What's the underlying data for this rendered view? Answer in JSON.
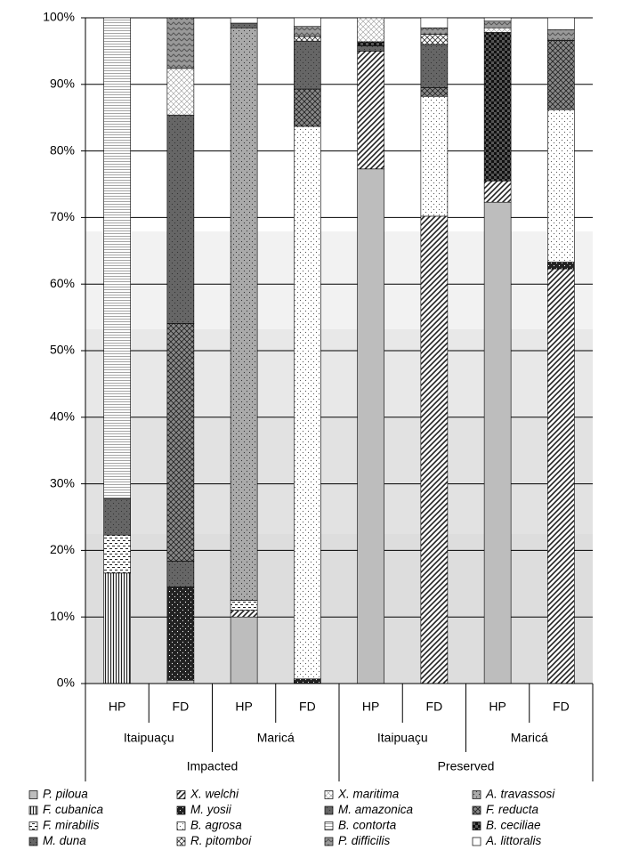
{
  "chart_data": {
    "type": "bar",
    "stacked": true,
    "categories": [
      "HP",
      "FD",
      "HP",
      "FD",
      "HP",
      "FD",
      "HP",
      "FD"
    ],
    "groups": [
      "Itaipuaçu",
      "Maricá",
      "Itaipuaçu",
      "Maricá"
    ],
    "supergroups": [
      "Impacted",
      "Preserved"
    ],
    "ylim": [
      0,
      100
    ],
    "yticks": [
      {
        "value": 0,
        "label": "0%"
      },
      {
        "value": 10,
        "label": "10%"
      },
      {
        "value": 20,
        "label": "20%"
      },
      {
        "value": 30,
        "label": "30%"
      },
      {
        "value": 40,
        "label": "40%"
      },
      {
        "value": 50,
        "label": "50%"
      },
      {
        "value": 60,
        "label": "60%"
      },
      {
        "value": 70,
        "label": "70%"
      },
      {
        "value": 80,
        "label": "80%"
      },
      {
        "value": 90,
        "label": "90%"
      },
      {
        "value": 100,
        "label": "100%"
      }
    ],
    "grid": true,
    "series": [
      {
        "name": "P. piloua",
        "color": "#bdbdbd",
        "values": [
          0,
          0.5,
          10.0,
          0,
          77.3,
          0,
          72.3,
          0
        ]
      },
      {
        "name": "X. welchi",
        "color": "#222222",
        "values": [
          0,
          0,
          1.0,
          0,
          17.7,
          70.2,
          3.2,
          62.3
        ]
      },
      {
        "name": "X. maritima",
        "color": "#999999",
        "values": [
          0,
          7.0,
          0,
          0,
          3.6,
          0,
          0.7,
          0
        ]
      },
      {
        "name": "A. travassosi",
        "color": "#aaaaaa",
        "values": [
          0,
          0,
          86.0,
          0,
          0,
          0,
          0,
          0
        ]
      },
      {
        "name": "F. cubanica",
        "color": "#222222",
        "values": [
          16.6,
          0,
          0,
          0,
          0,
          0,
          0,
          0
        ]
      },
      {
        "name": "M. yosii",
        "color": "#222222",
        "values": [
          0,
          14.0,
          0,
          0.7,
          0,
          0,
          0,
          1.0
        ]
      },
      {
        "name": "M. amazonica",
        "color": "#666666",
        "values": [
          0,
          31.3,
          0.7,
          7.2,
          0.8,
          6.5,
          0,
          0
        ]
      },
      {
        "name": "F. reducta",
        "color": "#888888",
        "values": [
          0,
          35.7,
          0,
          5.6,
          0,
          1.3,
          0,
          10.4
        ]
      },
      {
        "name": "F. mirabilis",
        "color": "#222222",
        "values": [
          5.7,
          0,
          1.5,
          0,
          0,
          0,
          0,
          0
        ]
      },
      {
        "name": "B. agrosa",
        "color": "#555555",
        "values": [
          0,
          0,
          0,
          83.0,
          0,
          18.0,
          0,
          22.9
        ]
      },
      {
        "name": "B. contorta",
        "color": "#888888",
        "values": [
          72.2,
          0,
          0,
          0,
          0,
          0,
          0,
          0
        ]
      },
      {
        "name": "B. ceciliae",
        "color": "#555555",
        "values": [
          0,
          0,
          0,
          0,
          0.6,
          0,
          22.3,
          0
        ]
      },
      {
        "name": "M. duna",
        "color": "#666666",
        "values": [
          5.5,
          3.9,
          0,
          0,
          0,
          0,
          0,
          0
        ]
      },
      {
        "name": "R. pitomboi",
        "color": "#333333",
        "values": [
          0,
          0,
          0,
          0.7,
          0,
          1.5,
          0,
          0
        ]
      },
      {
        "name": "P. difficilis",
        "color": "#999999",
        "values": [
          0,
          7.6,
          0,
          1.5,
          0,
          1.0,
          1.0,
          1.6
        ]
      },
      {
        "name": "A. littoralis",
        "color": "#ffffff",
        "values": [
          0,
          0,
          0.8,
          1.3,
          0,
          1.5,
          0.5,
          1.8
        ]
      }
    ]
  }
}
